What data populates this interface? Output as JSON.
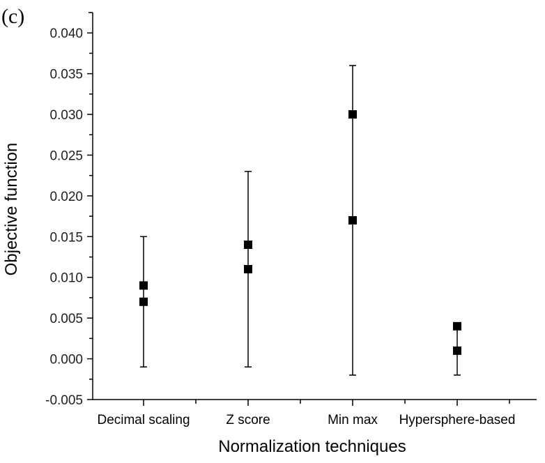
{
  "chart_data": {
    "type": "scatter",
    "panel_label": "(c)",
    "xlabel": "Normalization techniques",
    "ylabel": "Objective function",
    "categories": [
      "Decimal scaling",
      "Z score",
      "Min max",
      "Hypersphere-based"
    ],
    "ylim": [
      -0.005,
      0.0425
    ],
    "yticks": [
      "-0.005",
      "0.000",
      "0.005",
      "0.010",
      "0.015",
      "0.020",
      "0.025",
      "0.030",
      "0.035",
      "0.040"
    ],
    "ytick_values": [
      -0.005,
      0,
      0.005,
      0.01,
      0.015,
      0.02,
      0.025,
      0.03,
      0.035,
      0.04
    ],
    "grid": false,
    "points": [
      {
        "category": "Decimal scaling",
        "values": [
          0.009,
          0.007
        ],
        "err_low": -0.001,
        "err_high": 0.015
      },
      {
        "category": "Z score",
        "values": [
          0.014,
          0.011
        ],
        "err_low": -0.001,
        "err_high": 0.023
      },
      {
        "category": "Min max",
        "values": [
          0.03,
          0.017
        ],
        "err_low": -0.002,
        "err_high": 0.036
      },
      {
        "category": "Hypersphere-based",
        "values": [
          0.004,
          0.001
        ],
        "err_low": -0.002,
        "err_high": 0.004
      }
    ],
    "marker_color": "#000000"
  }
}
